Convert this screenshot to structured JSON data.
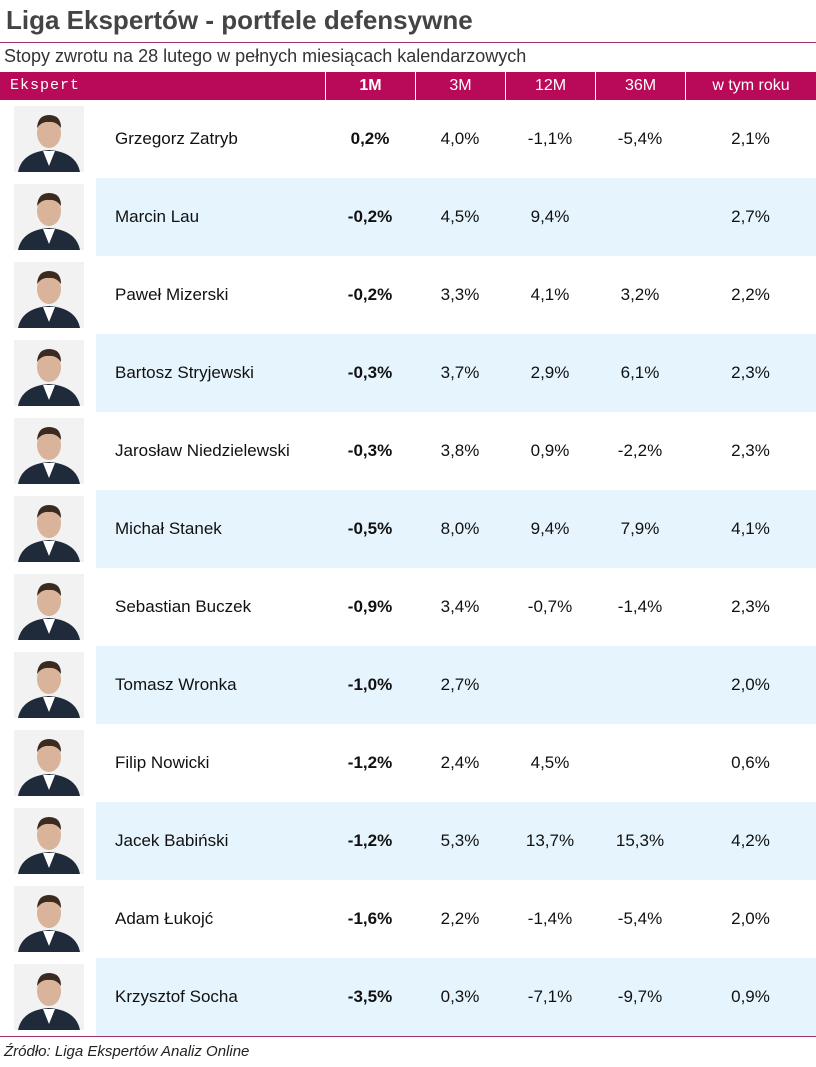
{
  "header": {
    "title": "Liga Ekspertów - portfele defensywne",
    "subtitle": "Stopy zwrotu na 28 lutego w pełnych miesiącach kalendarzowych"
  },
  "table": {
    "columns": [
      "Ekspert",
      "1M",
      "3M",
      "12M",
      "36M",
      "w tym roku"
    ],
    "rows": [
      [
        "Grzegorz Zatryb",
        "0,2%",
        "4,0%",
        "-1,1%",
        "-5,4%",
        "2,1%"
      ],
      [
        "Marcin Lau",
        "-0,2%",
        "4,5%",
        "9,4%",
        null,
        "2,7%"
      ],
      [
        "Paweł Mizerski",
        "-0,2%",
        "3,3%",
        "4,1%",
        "3,2%",
        "2,2%"
      ],
      [
        "Bartosz Stryjewski",
        "-0,3%",
        "3,7%",
        "2,9%",
        "6,1%",
        "2,3%"
      ],
      [
        "Jarosław Niedzielewski",
        "-0,3%",
        "3,8%",
        "0,9%",
        "-2,2%",
        "2,3%"
      ],
      [
        "Michał Stanek",
        "-0,5%",
        "8,0%",
        "9,4%",
        "7,9%",
        "4,1%"
      ],
      [
        "Sebastian Buczek",
        "-0,9%",
        "3,4%",
        "-0,7%",
        "-1,4%",
        "2,3%"
      ],
      [
        "Tomasz Wronka",
        "-1,0%",
        "2,7%",
        null,
        null,
        "2,0%"
      ],
      [
        "Filip Nowicki",
        "-1,2%",
        "2,4%",
        "4,5%",
        null,
        "0,6%"
      ],
      [
        "Jacek Babiński",
        "-1,2%",
        "5,3%",
        "13,7%",
        "15,3%",
        "4,2%"
      ],
      [
        "Adam Łukojć",
        "-1,6%",
        "2,2%",
        "-1,4%",
        "-5,4%",
        "2,0%"
      ],
      [
        "Krzysztof Socha",
        "-3,5%",
        "0,3%",
        "-7,1%",
        "-9,7%",
        "0,9%"
      ]
    ]
  },
  "footer": {
    "source": "Źródło: Liga Ekspertów Analiz Online"
  }
}
